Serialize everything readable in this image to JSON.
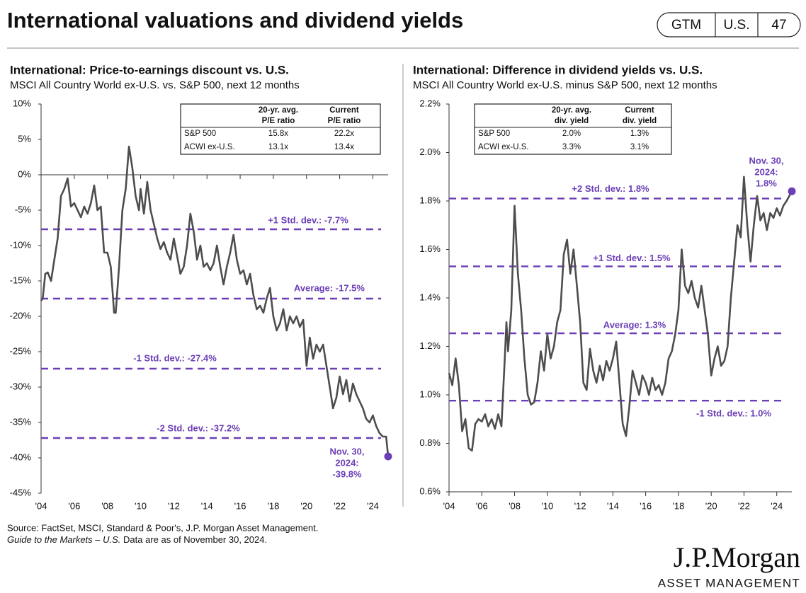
{
  "header": {
    "title": "International valuations and dividend yields",
    "badge": [
      "GTM",
      "U.S.",
      "47"
    ]
  },
  "chart_data": [
    {
      "type": "line",
      "title": "International: Price-to-earnings discount vs. U.S.",
      "subtitle": "MSCI All Country World ex-U.S. vs. S&P 500, next 12 months",
      "color": "#4d4d4f",
      "x": [
        2004,
        2004.1,
        2004.25,
        2004.4,
        2004.6,
        2004.8,
        2005,
        2005.2,
        2005.4,
        2005.6,
        2005.8,
        2006,
        2006.2,
        2006.4,
        2006.6,
        2006.8,
        2007,
        2007.2,
        2007.4,
        2007.6,
        2007.8,
        2008,
        2008.2,
        2008.4,
        2008.5,
        2008.7,
        2008.9,
        2009.1,
        2009.3,
        2009.5,
        2009.7,
        2009.9,
        2010,
        2010.2,
        2010.4,
        2010.6,
        2010.8,
        2011,
        2011.2,
        2011.4,
        2011.6,
        2011.8,
        2012,
        2012.2,
        2012.4,
        2012.6,
        2012.8,
        2013,
        2013.2,
        2013.4,
        2013.6,
        2013.8,
        2014,
        2014.2,
        2014.4,
        2014.6,
        2014.8,
        2015,
        2015.2,
        2015.4,
        2015.6,
        2015.8,
        2016,
        2016.2,
        2016.4,
        2016.6,
        2016.8,
        2017,
        2017.2,
        2017.4,
        2017.6,
        2017.8,
        2018,
        2018.2,
        2018.4,
        2018.6,
        2018.8,
        2019,
        2019.2,
        2019.4,
        2019.6,
        2019.8,
        2020,
        2020.2,
        2020.4,
        2020.6,
        2020.8,
        2021,
        2021.2,
        2021.4,
        2021.6,
        2021.8,
        2022,
        2022.2,
        2022.4,
        2022.6,
        2022.8,
        2023,
        2023.2,
        2023.4,
        2023.6,
        2023.8,
        2024,
        2024.2,
        2024.4,
        2024.6,
        2024.8,
        2024.92
      ],
      "values": [
        -17.8,
        -17.5,
        -14,
        -13.8,
        -15,
        -12,
        -9,
        -3,
        -2,
        -0.5,
        -4.5,
        -4,
        -5,
        -6,
        -4.5,
        -5.5,
        -4,
        -1.5,
        -5,
        -4.5,
        -11,
        -11,
        -13,
        -19.5,
        -19.5,
        -13,
        -5,
        -2,
        4,
        1,
        -3,
        -5,
        -2,
        -5.5,
        -1,
        -5,
        -7,
        -9,
        -10.5,
        -9.5,
        -11,
        -12,
        -9,
        -11.5,
        -14,
        -13,
        -10,
        -5.5,
        -8,
        -12,
        -10,
        -13,
        -12.5,
        -13.5,
        -12.5,
        -10,
        -13,
        -15.5,
        -13,
        -11,
        -8.5,
        -12,
        -14,
        -13.5,
        -15.5,
        -14,
        -17,
        -19,
        -18.5,
        -19.5,
        -17.5,
        -16,
        -20,
        -22,
        -21,
        -19,
        -22,
        -20,
        -21,
        -20,
        -21.5,
        -20.5,
        -27,
        -23,
        -26,
        -24,
        -25,
        -24,
        -27,
        -30,
        -33,
        -31.5,
        -28.5,
        -31,
        -29,
        -32,
        -29.5,
        -31,
        -32,
        -33,
        -34.5,
        -35,
        -34,
        -35.5,
        -36.5,
        -37,
        -37,
        -39.8
      ],
      "xlim": [
        2004,
        2024.92
      ],
      "xticks": [
        {
          "value": 2004,
          "label": "'04"
        },
        {
          "value": 2006,
          "label": "'06"
        },
        {
          "value": 2008,
          "label": "'08"
        },
        {
          "value": 2010,
          "label": "'10"
        },
        {
          "value": 2012,
          "label": "'12"
        },
        {
          "value": 2014,
          "label": "'14"
        },
        {
          "value": 2016,
          "label": "'16"
        },
        {
          "value": 2018,
          "label": "'18"
        },
        {
          "value": 2020,
          "label": "'20"
        },
        {
          "value": 2022,
          "label": "'22"
        },
        {
          "value": 2024,
          "label": "'24"
        }
      ],
      "ylim": [
        -45,
        10
      ],
      "yticks": [
        {
          "value": 10,
          "label": "10%"
        },
        {
          "value": 5,
          "label": "5%"
        },
        {
          "value": 0,
          "label": "0%"
        },
        {
          "value": -5,
          "label": "-5%"
        },
        {
          "value": -10,
          "label": "-10%"
        },
        {
          "value": -15,
          "label": "-15%"
        },
        {
          "value": -20,
          "label": "-20%"
        },
        {
          "value": -25,
          "label": "-25%"
        },
        {
          "value": -30,
          "label": "-30%"
        },
        {
          "value": -35,
          "label": "-35%"
        },
        {
          "value": -40,
          "label": "-40%"
        },
        {
          "value": -45,
          "label": "-45%"
        }
      ],
      "ref_color": "#6b3fb6",
      "ref_lines": [
        {
          "value": -7.7,
          "label": "+1 Std. dev.: -7.7%"
        },
        {
          "value": -17.5,
          "label": "Average: -17.5%"
        },
        {
          "value": -27.4,
          "label": "-1 Std. dev.: -27.4%"
        },
        {
          "value": -37.2,
          "label": "-2 Std. dev.: -37.2%"
        }
      ],
      "annotation": {
        "lines": [
          "Nov. 30,",
          "2024:"
        ],
        "value": -39.8,
        "label": "-39.8%"
      },
      "table": {
        "headers": [
          [
            "20-yr. avg.",
            "P/E ratio"
          ],
          [
            "Current",
            "P/E ratio"
          ]
        ],
        "rows": [
          {
            "label": "S&P 500",
            "cells": [
              "15.8x",
              "22.2x"
            ]
          },
          {
            "label": "ACWI ex-U.S.",
            "cells": [
              "13.1x",
              "13.4x"
            ]
          }
        ]
      }
    },
    {
      "type": "line",
      "title": "International: Difference in dividend yields vs. U.S.",
      "subtitle": "MSCI All Country World ex-U.S. minus S&P 500, next 12 months",
      "color": "#4d4d4f",
      "x": [
        2004,
        2004.2,
        2004.4,
        2004.6,
        2004.8,
        2005,
        2005.2,
        2005.4,
        2005.6,
        2005.8,
        2006,
        2006.2,
        2006.4,
        2006.6,
        2006.8,
        2007,
        2007.2,
        2007.4,
        2007.5,
        2007.6,
        2007.8,
        2008,
        2008.2,
        2008.4,
        2008.6,
        2008.8,
        2009,
        2009.2,
        2009.4,
        2009.6,
        2009.8,
        2010,
        2010.2,
        2010.4,
        2010.6,
        2010.8,
        2011,
        2011.2,
        2011.4,
        2011.6,
        2011.8,
        2012,
        2012.2,
        2012.4,
        2012.6,
        2012.8,
        2013,
        2013.2,
        2013.4,
        2013.6,
        2013.8,
        2014,
        2014.2,
        2014.4,
        2014.6,
        2014.8,
        2015,
        2015.2,
        2015.4,
        2015.6,
        2015.8,
        2016,
        2016.2,
        2016.4,
        2016.6,
        2016.8,
        2017,
        2017.2,
        2017.4,
        2017.6,
        2017.8,
        2018,
        2018.2,
        2018.4,
        2018.6,
        2018.8,
        2019,
        2019.2,
        2019.4,
        2019.6,
        2019.8,
        2020,
        2020.2,
        2020.4,
        2020.6,
        2020.8,
        2021,
        2021.2,
        2021.4,
        2021.6,
        2021.8,
        2022,
        2022.2,
        2022.4,
        2022.6,
        2022.8,
        2023,
        2023.2,
        2023.4,
        2023.6,
        2023.8,
        2024,
        2024.2,
        2024.4,
        2024.6,
        2024.92
      ],
      "values": [
        1.09,
        1.04,
        1.15,
        1.04,
        0.85,
        0.9,
        0.78,
        0.77,
        0.88,
        0.9,
        0.89,
        0.92,
        0.87,
        0.9,
        0.86,
        0.92,
        0.87,
        1.15,
        1.3,
        1.18,
        1.35,
        1.78,
        1.5,
        1.35,
        1.15,
        1.0,
        0.96,
        0.97,
        1.05,
        1.18,
        1.1,
        1.25,
        1.15,
        1.2,
        1.3,
        1.35,
        1.58,
        1.64,
        1.5,
        1.6,
        1.45,
        1.3,
        1.05,
        1.02,
        1.19,
        1.1,
        1.05,
        1.12,
        1.06,
        1.14,
        1.1,
        1.15,
        1.22,
        1.05,
        0.88,
        0.83,
        0.95,
        1.1,
        1.05,
        1.0,
        1.08,
        1.05,
        1.0,
        1.07,
        1.02,
        1.04,
        1.0,
        1.05,
        1.15,
        1.18,
        1.25,
        1.35,
        1.6,
        1.45,
        1.42,
        1.47,
        1.4,
        1.36,
        1.45,
        1.35,
        1.25,
        1.08,
        1.15,
        1.2,
        1.12,
        1.14,
        1.2,
        1.4,
        1.55,
        1.7,
        1.65,
        1.9,
        1.7,
        1.55,
        1.7,
        1.82,
        1.72,
        1.75,
        1.68,
        1.75,
        1.73,
        1.77,
        1.74,
        1.78,
        1.8,
        1.84
      ],
      "xlim": [
        2004,
        2024.92
      ],
      "xticks": [
        {
          "value": 2004,
          "label": "'04"
        },
        {
          "value": 2006,
          "label": "'06"
        },
        {
          "value": 2008,
          "label": "'08"
        },
        {
          "value": 2010,
          "label": "'10"
        },
        {
          "value": 2012,
          "label": "'12"
        },
        {
          "value": 2014,
          "label": "'14"
        },
        {
          "value": 2016,
          "label": "'16"
        },
        {
          "value": 2018,
          "label": "'18"
        },
        {
          "value": 2020,
          "label": "'20"
        },
        {
          "value": 2022,
          "label": "'22"
        },
        {
          "value": 2024,
          "label": "'24"
        }
      ],
      "ylim": [
        0.6,
        2.2
      ],
      "yticks": [
        {
          "value": 2.2,
          "label": "2.2%"
        },
        {
          "value": 2.0,
          "label": "2.0%"
        },
        {
          "value": 1.8,
          "label": "1.8%"
        },
        {
          "value": 1.6,
          "label": "1.6%"
        },
        {
          "value": 1.4,
          "label": "1.4%"
        },
        {
          "value": 1.2,
          "label": "1.2%"
        },
        {
          "value": 1.0,
          "label": "1.0%"
        },
        {
          "value": 0.8,
          "label": "0.8%"
        },
        {
          "value": 0.6,
          "label": "0.6%"
        }
      ],
      "ref_color": "#6b3fb6",
      "ref_lines": [
        {
          "value": 1.81,
          "label": "+2 Std. dev.: 1.8%"
        },
        {
          "value": 1.53,
          "label": "+1 Std. dev.: 1.5%"
        },
        {
          "value": 1.254,
          "label": "Average: 1.3%"
        },
        {
          "value": 0.976,
          "label": "-1 Std. dev.: 1.0%"
        }
      ],
      "annotation": {
        "lines": [
          "Nov. 30,",
          "2024:"
        ],
        "value": 1.84,
        "label": "1.8%"
      },
      "table": {
        "headers": [
          [
            "20-yr. avg.",
            "div. yield"
          ],
          [
            "Current",
            "div. yield"
          ]
        ],
        "rows": [
          {
            "label": "S&P 500",
            "cells": [
              "2.0%",
              "1.3%"
            ]
          },
          {
            "label": "ACWI ex-U.S.",
            "cells": [
              "3.3%",
              "3.1%"
            ]
          }
        ]
      }
    }
  ],
  "footer": {
    "source": "Source: FactSet, MSCI, Standard & Poor's, J.P. Morgan Asset Management.",
    "guide": "Guide to the Markets – U.S.",
    "asof": " Data are as of November 30, 2024."
  },
  "logo": {
    "name": "J.P.Morgan",
    "sub": "ASSET MANAGEMENT"
  }
}
